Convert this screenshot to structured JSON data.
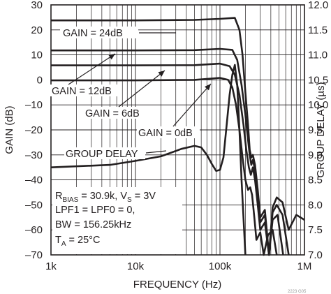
{
  "chart_data": {
    "type": "line",
    "title": "",
    "xlabel": "FREQUENCY (Hz)",
    "ylabel": "GAIN (dB)",
    "y2label": "GROUP DELAY (µs)",
    "x_scale": "log",
    "xlim": [
      1000,
      1000000
    ],
    "ylim": [
      -70,
      30
    ],
    "y2lim": [
      7.0,
      12.0
    ],
    "grid": true,
    "x_ticks": [
      "1k",
      "10k",
      "100k",
      "1M"
    ],
    "y_ticks": [
      "30",
      "20",
      "10",
      "0",
      "–10",
      "–20",
      "–30",
      "–40",
      "–50",
      "–60",
      "–70"
    ],
    "y2_ticks": [
      "12.0",
      "11.5",
      "11.0",
      "10.5",
      "10.0",
      "9.5",
      "9.0",
      "8.5",
      "8.0",
      "7.5",
      "7.0"
    ],
    "series": [
      {
        "name": "GAIN = 24dB",
        "axis": "left",
        "x": [
          1000,
          10000,
          50000,
          100000,
          150000,
          170000,
          185000,
          200000,
          215000,
          225000,
          235000,
          245000,
          260000,
          280000,
          300000,
          340000,
          380000,
          420000,
          470000,
          550000,
          650000,
          800000,
          1000000
        ],
        "y": [
          23.8,
          23.8,
          24.0,
          24.4,
          24.8,
          20.0,
          10.0,
          -5.0,
          -18.0,
          -28.0,
          -31.0,
          -30.0,
          -34.0,
          -44.0,
          -55.0,
          -52.0,
          -70.0,
          -51.0,
          -47.0,
          -49.0,
          -60.0,
          -54.0,
          -56.0
        ]
      },
      {
        "name": "GAIN = 12dB",
        "axis": "left",
        "x": [
          1000,
          10000,
          50000,
          100000,
          140000,
          160000,
          180000,
          200000,
          215000,
          225000,
          235000,
          245000,
          260000,
          280000,
          300000,
          340000,
          380000,
          420000,
          470000,
          550000,
          650000
        ],
        "y": [
          11.8,
          11.8,
          11.9,
          12.4,
          12.0,
          8.0,
          -2.0,
          -14.0,
          -24.0,
          -30.0,
          -34.0,
          -32.0,
          -36.0,
          -46.0,
          -57.0,
          -54.0,
          -70.0,
          -53.0,
          -50.0,
          -54.0,
          -70.0
        ]
      },
      {
        "name": "GAIN = 6dB",
        "axis": "left",
        "x": [
          1000,
          10000,
          50000,
          100000,
          130000,
          150000,
          170000,
          190000,
          205000,
          220000,
          232000,
          245000,
          260000,
          280000,
          300000,
          340000,
          380000,
          420000,
          480000,
          560000
        ],
        "y": [
          5.8,
          5.8,
          5.9,
          6.5,
          5.5,
          2.0,
          -6.0,
          -18.0,
          -28.0,
          -35.0,
          -38.0,
          -35.0,
          -40.0,
          -50.0,
          -60.0,
          -57.0,
          -70.0,
          -56.0,
          -54.0,
          -70.0
        ]
      },
      {
        "name": "GAIN = 0dB",
        "axis": "left",
        "x": [
          1000,
          10000,
          50000,
          100000,
          125000,
          140000,
          155000,
          170000,
          185000,
          200000,
          215000,
          228000,
          240000,
          255000,
          270000,
          300000,
          330000,
          370000,
          420000,
          470000
        ],
        "y": [
          -0.2,
          -0.2,
          0.0,
          0.8,
          0.0,
          -3.0,
          -10.0,
          -20.0,
          -31.0,
          -40.0,
          -44.0,
          -43.0,
          -46.0,
          -55.0,
          -64.0,
          -61.0,
          -70.0,
          -62.0,
          -60.0,
          -70.0
        ]
      },
      {
        "name": "GROUP DELAY",
        "axis": "right",
        "x": [
          1000,
          5000,
          10000,
          20000,
          35000,
          50000,
          60000,
          70000,
          80000,
          90000,
          100000,
          110000,
          120000,
          130000,
          140000,
          150000,
          160000,
          170000,
          180000,
          200000
        ],
        "y": [
          8.75,
          8.8,
          8.88,
          8.97,
          9.12,
          9.18,
          9.15,
          9.0,
          8.82,
          8.68,
          8.7,
          8.95,
          9.6,
          10.2,
          10.6,
          10.8,
          10.4,
          9.5,
          8.5,
          7.0
        ]
      }
    ],
    "annotations": {
      "gain24": "GAIN = 24dB",
      "gain12": "GAIN = 12dB",
      "gain6": "GAIN = 6dB",
      "gain0": "GAIN = 0dB",
      "group_delay": "GROUP DELAY"
    },
    "conditions": {
      "line1_a": "R",
      "line1_sub1": "BIAS",
      "line1_b": " = 30.9k, V",
      "line1_sub2": "S",
      "line1_c": " = 3V",
      "line2": "LPF1 = LPF0 = 0,",
      "line3": "BW = 156.25kHz",
      "line4_a": "T",
      "line4_sub": "A",
      "line4_b": " = 25°C"
    },
    "figure_id": "2223 G05"
  }
}
